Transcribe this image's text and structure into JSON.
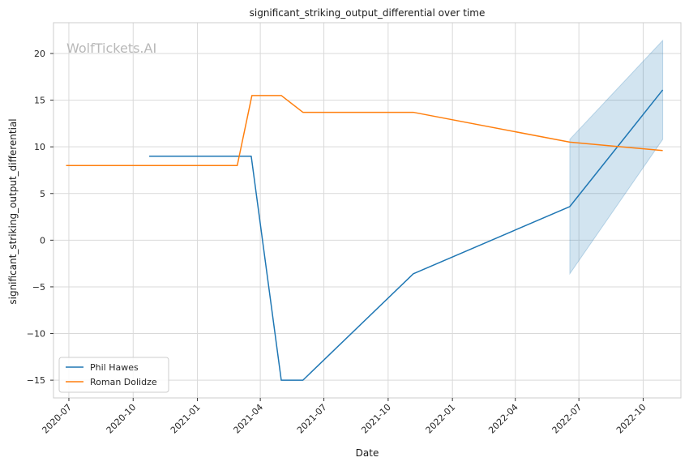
{
  "chart_data": {
    "type": "line",
    "title": "significant_striking_output_differential over time",
    "xlabel": "Date",
    "ylabel": "significant_striking_output_differential",
    "watermark": "WolfTickets.AI",
    "x_ticks": [
      "2020-07",
      "2020-10",
      "2021-01",
      "2021-04",
      "2021-07",
      "2021-10",
      "2022-01",
      "2022-04",
      "2022-07",
      "2022-10"
    ],
    "y_ticks": [
      20,
      15,
      10,
      5,
      0,
      -5,
      -10,
      -15
    ],
    "y_tick_labels": [
      "20",
      "15",
      "10",
      "5",
      "0",
      "−5",
      "−10",
      "−15"
    ],
    "xlim": [
      "2020-06-09",
      "2022-11-24"
    ],
    "ylim": [
      -16.9,
      23.3
    ],
    "grid": true,
    "legend_position": "lower-left",
    "series": [
      {
        "name": "Phil Hawes",
        "color": "#1f77b4",
        "points": [
          {
            "x": "2020-10-24",
            "y": 9.0
          },
          {
            "x": "2021-03-19",
            "y": 9.0
          },
          {
            "x": "2021-05-01",
            "y": -15.0
          },
          {
            "x": "2021-06-01",
            "y": -15.0
          },
          {
            "x": "2021-11-06",
            "y": -3.6
          },
          {
            "x": "2022-06-18",
            "y": 3.6
          },
          {
            "x": "2022-10-29",
            "y": 16.1
          }
        ],
        "band": [
          {
            "x": "2022-06-18",
            "low": -3.6,
            "high": 10.8
          },
          {
            "x": "2022-10-29",
            "low": 10.8,
            "high": 21.4
          }
        ]
      },
      {
        "name": "Roman Dolidze",
        "color": "#ff7f0e",
        "points": [
          {
            "x": "2020-06-27",
            "y": 8.0
          },
          {
            "x": "2021-02-27",
            "y": 8.0
          },
          {
            "x": "2021-03-20",
            "y": 15.5
          },
          {
            "x": "2021-05-01",
            "y": 15.5
          },
          {
            "x": "2021-06-01",
            "y": 13.7
          },
          {
            "x": "2021-11-06",
            "y": 13.7
          },
          {
            "x": "2022-06-18",
            "y": 10.5
          },
          {
            "x": "2022-10-29",
            "y": 9.6
          }
        ]
      }
    ]
  }
}
